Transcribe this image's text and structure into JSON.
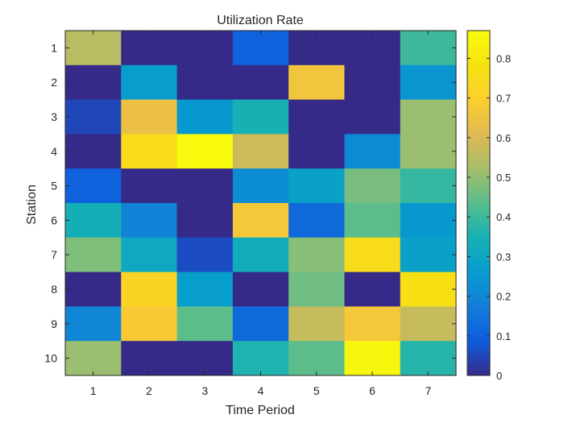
{
  "chart_data": {
    "type": "heatmap",
    "title": "Utilization Rate",
    "xlabel": "Time Period",
    "ylabel": "Station",
    "x_categories": [
      "1",
      "2",
      "3",
      "4",
      "5",
      "6",
      "7"
    ],
    "y_categories": [
      "1",
      "2",
      "3",
      "4",
      "5",
      "6",
      "7",
      "8",
      "9",
      "10"
    ],
    "values": [
      [
        0.55,
        0.0,
        0.0,
        0.1,
        0.0,
        0.0,
        0.4
      ],
      [
        0.0,
        0.27,
        0.0,
        0.0,
        0.66,
        0.0,
        0.24
      ],
      [
        0.05,
        0.64,
        0.25,
        0.35,
        0.0,
        0.0,
        0.51
      ],
      [
        0.0,
        0.75,
        0.87,
        0.58,
        0.0,
        0.21,
        0.51
      ],
      [
        0.1,
        0.0,
        0.0,
        0.22,
        0.28,
        0.47,
        0.39
      ],
      [
        0.34,
        0.19,
        0.0,
        0.67,
        0.12,
        0.44,
        0.25
      ],
      [
        0.48,
        0.31,
        0.06,
        0.33,
        0.49,
        0.75,
        0.28
      ],
      [
        0.0,
        0.72,
        0.27,
        0.0,
        0.46,
        0.0,
        0.77
      ],
      [
        0.2,
        0.68,
        0.44,
        0.12,
        0.57,
        0.67,
        0.57
      ],
      [
        0.51,
        0.0,
        0.0,
        0.36,
        0.44,
        0.85,
        0.37
      ]
    ],
    "colormap": "parula",
    "colorbar": {
      "range": [
        0,
        0.87
      ],
      "ticks": [
        "0",
        "0.1",
        "0.2",
        "0.3",
        "0.4",
        "0.5",
        "0.6",
        "0.7",
        "0.8"
      ]
    },
    "grid": false
  }
}
